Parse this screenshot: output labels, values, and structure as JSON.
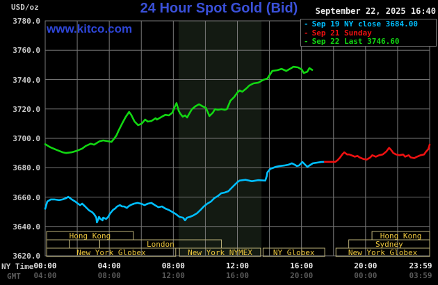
{
  "header": {
    "units_label": "USD/oz",
    "title": "24 Hour Spot Gold (Bid)",
    "datetime": "September 22, 2025 16:40",
    "watermark": "www.kitco.com"
  },
  "legend": {
    "items": [
      {
        "dash": "-",
        "label": "Sep 19 NY close 3684.00",
        "color": "#00bfff"
      },
      {
        "dash": "-",
        "label": "Sep 21 Sunday",
        "color": "#ee1111"
      },
      {
        "dash": "-",
        "label": "Sep 22 Last 3746.60",
        "color": "#12d812"
      }
    ]
  },
  "colors": {
    "background": "#000000",
    "grid": "#777777",
    "nymex_shade": "#131a12",
    "title": "#3a50d8",
    "watermark": "#2e46d8",
    "datetime": "#e8e8e8",
    "y_tick_text": "#c8c8c8",
    "ny_tick_text": "#f0f0f0",
    "gmt_tick_text": "#5a5a5a",
    "session_border": "#beb37a",
    "session_text": "#e8c33c"
  },
  "axes": {
    "y_ticks": [
      {
        "value": 3780,
        "label": "3780.0"
      },
      {
        "value": 3760,
        "label": "3760.0"
      },
      {
        "value": 3740,
        "label": "3740.0"
      },
      {
        "value": 3720,
        "label": "3720.0"
      },
      {
        "value": 3700,
        "label": "3700.0"
      },
      {
        "value": 3680,
        "label": "3680.0"
      },
      {
        "value": 3660,
        "label": "3660.0"
      },
      {
        "value": 3640,
        "label": "3640.0"
      },
      {
        "value": 3620,
        "label": "3620.0"
      }
    ],
    "x_row1_label": "NY Time",
    "x_row2_label": "GMT",
    "ny_ticks": [
      {
        "t": 0,
        "label": "00:00"
      },
      {
        "t": 4,
        "label": "04:00"
      },
      {
        "t": 8,
        "label": "08:00"
      },
      {
        "t": 12,
        "label": "12:00"
      },
      {
        "t": 16,
        "label": "16:00"
      },
      {
        "t": 20,
        "label": "20:00"
      },
      {
        "t": 24,
        "label": "23:59"
      }
    ],
    "gmt_ticks": [
      {
        "t": 0,
        "label": "04:00"
      },
      {
        "t": 4,
        "label": "08:00"
      },
      {
        "t": 8,
        "label": "12:00"
      },
      {
        "t": 12,
        "label": "16:00"
      },
      {
        "t": 16,
        "label": "20:00"
      },
      {
        "t": 20,
        "label": "00:00"
      },
      {
        "t": 24,
        "label": "03:59"
      }
    ]
  },
  "sessions": {
    "rows": [
      {
        "boxes": [
          {
            "label": "Hong Kong",
            "start": 0.09,
            "end": 5.5
          },
          {
            "label": "Hong Kong",
            "start": 20.4,
            "end": 24
          }
        ]
      },
      {
        "boxes": [
          {
            "label": "",
            "start": 0.09,
            "end": 1.5
          },
          {
            "label": "",
            "start": 1.5,
            "end": 3.4
          },
          {
            "label": "London",
            "start": 3.4,
            "end": 11.0
          },
          {
            "label": "Sydney",
            "start": 18.95,
            "end": 24
          }
        ]
      },
      {
        "boxes": [
          {
            "label": "New York Globex",
            "start": 0.09,
            "end": 8.15
          },
          {
            "label": "New York NYMEX",
            "start": 8.38,
            "end": 13.45
          },
          {
            "label": "NY Globex",
            "start": 13.6,
            "end": 17.45
          },
          {
            "label": "New York Globex",
            "start": 18.15,
            "end": 24
          }
        ]
      }
    ]
  },
  "chart_data": {
    "type": "line",
    "title": "24 Hour Spot Gold (Bid)",
    "xlabel": "NY Time (hours 00:00-23:59)",
    "ylabel": "USD/oz",
    "ylim": [
      3620,
      3780
    ],
    "xlim_hours": [
      0,
      24
    ],
    "grid": true,
    "gridline_step_hours": 2,
    "gridline_step_usd": 20,
    "legend_position": "top-right",
    "nymex_shade_hours": [
      8.33,
      13.5
    ],
    "series": [
      {
        "name": "Sep 19 NY close 3684.00",
        "color": "#00bfff",
        "points": [
          [
            0,
            3652
          ],
          [
            0.13,
            3656.9
          ],
          [
            0.35,
            3658.4
          ],
          [
            0.57,
            3658.4
          ],
          [
            0.87,
            3657.9
          ],
          [
            1.09,
            3658.4
          ],
          [
            1.31,
            3659.3
          ],
          [
            1.44,
            3660.2
          ],
          [
            1.66,
            3658.4
          ],
          [
            1.88,
            3656.9
          ],
          [
            2.05,
            3655.5
          ],
          [
            2.18,
            3654.5
          ],
          [
            2.31,
            3655.5
          ],
          [
            2.49,
            3653.6
          ],
          [
            2.62,
            3652.2
          ],
          [
            2.75,
            3650.8
          ],
          [
            2.92,
            3649.8
          ],
          [
            3.05,
            3648.4
          ],
          [
            3.19,
            3646
          ],
          [
            3.23,
            3642.7
          ],
          [
            3.32,
            3645.1
          ],
          [
            3.36,
            3646.5
          ],
          [
            3.45,
            3645.1
          ],
          [
            3.58,
            3644.2
          ],
          [
            3.62,
            3646
          ],
          [
            3.8,
            3645.1
          ],
          [
            3.93,
            3646.5
          ],
          [
            4.06,
            3648.9
          ],
          [
            4.23,
            3651.2
          ],
          [
            4.36,
            3652.2
          ],
          [
            4.49,
            3653.6
          ],
          [
            4.67,
            3654.5
          ],
          [
            4.8,
            3653.6
          ],
          [
            4.93,
            3653.6
          ],
          [
            5.1,
            3652.6
          ],
          [
            5.19,
            3653.6
          ],
          [
            5.32,
            3654.5
          ],
          [
            5.54,
            3655.5
          ],
          [
            5.76,
            3656
          ],
          [
            5.98,
            3655.5
          ],
          [
            6.2,
            3654.5
          ],
          [
            6.41,
            3655.5
          ],
          [
            6.63,
            3656
          ],
          [
            6.85,
            3654.5
          ],
          [
            7.07,
            3653.1
          ],
          [
            7.29,
            3653.6
          ],
          [
            7.5,
            3652.2
          ],
          [
            7.72,
            3651.2
          ],
          [
            7.94,
            3649.8
          ],
          [
            8.16,
            3648.4
          ],
          [
            8.38,
            3646.5
          ],
          [
            8.6,
            3646
          ],
          [
            8.73,
            3644.2
          ],
          [
            8.86,
            3646
          ],
          [
            9.03,
            3646.5
          ],
          [
            9.25,
            3647.5
          ],
          [
            9.47,
            3648.9
          ],
          [
            9.69,
            3651.2
          ],
          [
            9.9,
            3653.6
          ],
          [
            10.12,
            3655.5
          ],
          [
            10.34,
            3656.9
          ],
          [
            10.56,
            3659.3
          ],
          [
            10.78,
            3660.7
          ],
          [
            10.99,
            3662.6
          ],
          [
            11.21,
            3663.1
          ],
          [
            11.43,
            3664
          ],
          [
            11.65,
            3666.4
          ],
          [
            11.87,
            3668.8
          ],
          [
            12,
            3670.2
          ],
          [
            12.13,
            3671.2
          ],
          [
            12.5,
            3671.8
          ],
          [
            12.9,
            3670.8
          ],
          [
            13.3,
            3671.5
          ],
          [
            13.74,
            3671.2
          ],
          [
            13.83,
            3674.4
          ],
          [
            13.87,
            3676.8
          ],
          [
            14.05,
            3679.2
          ],
          [
            14.18,
            3679.7
          ],
          [
            14.4,
            3680.6
          ],
          [
            14.62,
            3681.1
          ],
          [
            14.92,
            3681.5
          ],
          [
            15.18,
            3682
          ],
          [
            15.4,
            3683
          ],
          [
            15.58,
            3682
          ],
          [
            15.71,
            3681.1
          ],
          [
            15.84,
            3681.5
          ],
          [
            16.06,
            3683.9
          ],
          [
            16.23,
            3682
          ],
          [
            16.36,
            3680.6
          ],
          [
            16.49,
            3681.5
          ],
          [
            16.71,
            3683
          ],
          [
            16.93,
            3683.4
          ],
          [
            17.23,
            3683.9
          ],
          [
            17.45,
            3684
          ]
        ]
      },
      {
        "name": "Sep 21 Sunday",
        "color": "#ee1111",
        "points": [
          [
            17.45,
            3684
          ],
          [
            18.11,
            3684
          ],
          [
            18.24,
            3685
          ],
          [
            18.41,
            3687
          ],
          [
            18.54,
            3689
          ],
          [
            18.67,
            3690.5
          ],
          [
            18.85,
            3689
          ],
          [
            18.98,
            3689
          ],
          [
            19.11,
            3688.5
          ],
          [
            19.33,
            3687.5
          ],
          [
            19.5,
            3688
          ],
          [
            19.63,
            3687
          ],
          [
            19.85,
            3686
          ],
          [
            20.07,
            3685.5
          ],
          [
            20.29,
            3687
          ],
          [
            20.42,
            3688.5
          ],
          [
            20.64,
            3687.5
          ],
          [
            20.85,
            3688.5
          ],
          [
            21.07,
            3689
          ],
          [
            21.29,
            3691
          ],
          [
            21.47,
            3693.5
          ],
          [
            21.6,
            3692
          ],
          [
            21.73,
            3690
          ],
          [
            21.9,
            3689
          ],
          [
            22.12,
            3688.5
          ],
          [
            22.34,
            3689
          ],
          [
            22.47,
            3687.5
          ],
          [
            22.69,
            3688.5
          ],
          [
            22.82,
            3687
          ],
          [
            23.04,
            3686.5
          ],
          [
            23.21,
            3687.5
          ],
          [
            23.43,
            3688.5
          ],
          [
            23.65,
            3689
          ],
          [
            23.78,
            3691
          ],
          [
            23.91,
            3692.5
          ],
          [
            23.97,
            3694.5
          ],
          [
            24,
            3695.8
          ]
        ]
      },
      {
        "name": "Sep 22 Last 3746.60",
        "color": "#12d812",
        "points": [
          [
            0,
            3696
          ],
          [
            0.31,
            3694
          ],
          [
            0.65,
            3692.4
          ],
          [
            1.09,
            3690.5
          ],
          [
            1.31,
            3690
          ],
          [
            1.66,
            3690.5
          ],
          [
            1.96,
            3691.5
          ],
          [
            2.31,
            3693
          ],
          [
            2.53,
            3694.8
          ],
          [
            2.84,
            3696.3
          ],
          [
            3.05,
            3695.7
          ],
          [
            3.4,
            3698
          ],
          [
            3.62,
            3698.6
          ],
          [
            3.93,
            3698
          ],
          [
            4.14,
            3697.6
          ],
          [
            4.28,
            3699.5
          ],
          [
            4.45,
            3702
          ],
          [
            4.58,
            3705.2
          ],
          [
            4.8,
            3710
          ],
          [
            5.02,
            3714.5
          ],
          [
            5.24,
            3718
          ],
          [
            5.37,
            3716
          ],
          [
            5.58,
            3711.4
          ],
          [
            5.8,
            3709
          ],
          [
            6.02,
            3710
          ],
          [
            6.24,
            3712.8
          ],
          [
            6.41,
            3711.4
          ],
          [
            6.63,
            3711.8
          ],
          [
            6.89,
            3713.7
          ],
          [
            6.98,
            3712.8
          ],
          [
            7.33,
            3715
          ],
          [
            7.5,
            3716
          ],
          [
            7.72,
            3715.6
          ],
          [
            7.94,
            3717.5
          ],
          [
            8.07,
            3721
          ],
          [
            8.2,
            3724
          ],
          [
            8.33,
            3719
          ],
          [
            8.42,
            3717
          ],
          [
            8.59,
            3714.7
          ],
          [
            8.73,
            3715.6
          ],
          [
            8.86,
            3714.2
          ],
          [
            9.03,
            3717.5
          ],
          [
            9.16,
            3719.9
          ],
          [
            9.38,
            3721.8
          ],
          [
            9.6,
            3723.2
          ],
          [
            9.82,
            3721.8
          ],
          [
            10.03,
            3720.8
          ],
          [
            10.25,
            3715.2
          ],
          [
            10.47,
            3717.5
          ],
          [
            10.6,
            3719.9
          ],
          [
            10.78,
            3719.4
          ],
          [
            11,
            3719.9
          ],
          [
            11.21,
            3719.4
          ],
          [
            11.34,
            3719.9
          ],
          [
            11.47,
            3723.2
          ],
          [
            11.56,
            3725.6
          ],
          [
            11.78,
            3727.9
          ],
          [
            12,
            3731.2
          ],
          [
            12.13,
            3732.6
          ],
          [
            12.3,
            3731.7
          ],
          [
            12.57,
            3734.1
          ],
          [
            12.74,
            3736
          ],
          [
            13,
            3737.4
          ],
          [
            13.31,
            3737.9
          ],
          [
            13.61,
            3739.8
          ],
          [
            13.87,
            3740.7
          ],
          [
            14.18,
            3745.9
          ],
          [
            14.49,
            3746.4
          ],
          [
            14.75,
            3747.3
          ],
          [
            15.05,
            3745.9
          ],
          [
            15.36,
            3747.8
          ],
          [
            15.49,
            3748.7
          ],
          [
            15.79,
            3748.3
          ],
          [
            16.01,
            3746.9
          ],
          [
            16.14,
            3744.5
          ],
          [
            16.36,
            3745.4
          ],
          [
            16.49,
            3747.8
          ],
          [
            16.67,
            3746.6
          ]
        ]
      }
    ]
  }
}
